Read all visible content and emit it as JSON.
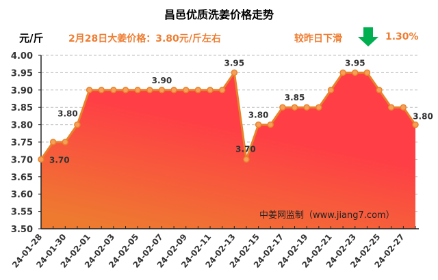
{
  "title": "昌邑优质洗姜价格走势",
  "unit": "元/斤",
  "headline": "2月28日大姜价格：3.80元/斤左右",
  "change": {
    "label": "较昨日下滑",
    "direction_icon": "arrow-down-icon",
    "percent": "1.30%",
    "arrow_color": "#00b050"
  },
  "watermark": "中姜网监制（www.jiang7.com）",
  "colors": {
    "line": "#e8822a",
    "fill_top": "#ff3e46",
    "fill_bottom": "#ee7a30",
    "text_accent": "#ee7d31"
  },
  "chart_data": {
    "type": "area",
    "title": "昌邑优质洗姜价格走势",
    "ylabel": "元/斤",
    "ylim": [
      3.5,
      4.0
    ],
    "yticks": [
      "3.50",
      "3.55",
      "3.60",
      "3.65",
      "3.70",
      "3.75",
      "3.80",
      "3.85",
      "3.90",
      "3.95",
      "4.00"
    ],
    "grid": true,
    "x": [
      "24-01-28",
      "24-01-29",
      "24-01-30",
      "24-01-31",
      "24-02-01",
      "24-02-02",
      "24-02-03",
      "24-02-04",
      "24-02-05",
      "24-02-06",
      "24-02-07",
      "24-02-08",
      "24-02-09",
      "24-02-10",
      "24-02-11",
      "24-02-12",
      "24-02-13",
      "24-02-14",
      "24-02-15",
      "24-02-16",
      "24-02-17",
      "24-02-18",
      "24-02-19",
      "24-02-20",
      "24-02-21",
      "24-02-22",
      "24-02-23",
      "24-02-24",
      "24-02-25",
      "24-02-26",
      "24-02-27",
      "24-02-28"
    ],
    "values": [
      3.7,
      3.75,
      3.75,
      3.8,
      3.9,
      3.9,
      3.9,
      3.9,
      3.9,
      3.9,
      3.9,
      3.9,
      3.9,
      3.9,
      3.9,
      3.9,
      3.95,
      3.7,
      3.8,
      3.8,
      3.85,
      3.85,
      3.85,
      3.85,
      3.9,
      3.95,
      3.95,
      3.95,
      3.9,
      3.85,
      3.85,
      3.8
    ],
    "xtick_labels": [
      "24-01-28",
      "24-01-30",
      "24-02-01",
      "24-02-03",
      "24-02-05",
      "24-02-07",
      "24-02-09",
      "24-02-11",
      "24-02-13",
      "24-02-15",
      "24-02-17",
      "24-02-19",
      "24-02-21",
      "24-02-23",
      "24-02-25",
      "24-02-27"
    ],
    "annotations": [
      {
        "index": 0,
        "text": "3.70",
        "pos": "right"
      },
      {
        "index": 3,
        "text": "3.80",
        "pos": "above-left"
      },
      {
        "index": 10,
        "text": "3.90",
        "pos": "above"
      },
      {
        "index": 16,
        "text": "3.95",
        "pos": "above"
      },
      {
        "index": 17,
        "text": "3.70",
        "pos": "above"
      },
      {
        "index": 18,
        "text": "3.80",
        "pos": "above"
      },
      {
        "index": 21,
        "text": "3.85",
        "pos": "above"
      },
      {
        "index": 26,
        "text": "3.95",
        "pos": "above"
      },
      {
        "index": 31,
        "text": "3.80",
        "pos": "above"
      }
    ]
  }
}
